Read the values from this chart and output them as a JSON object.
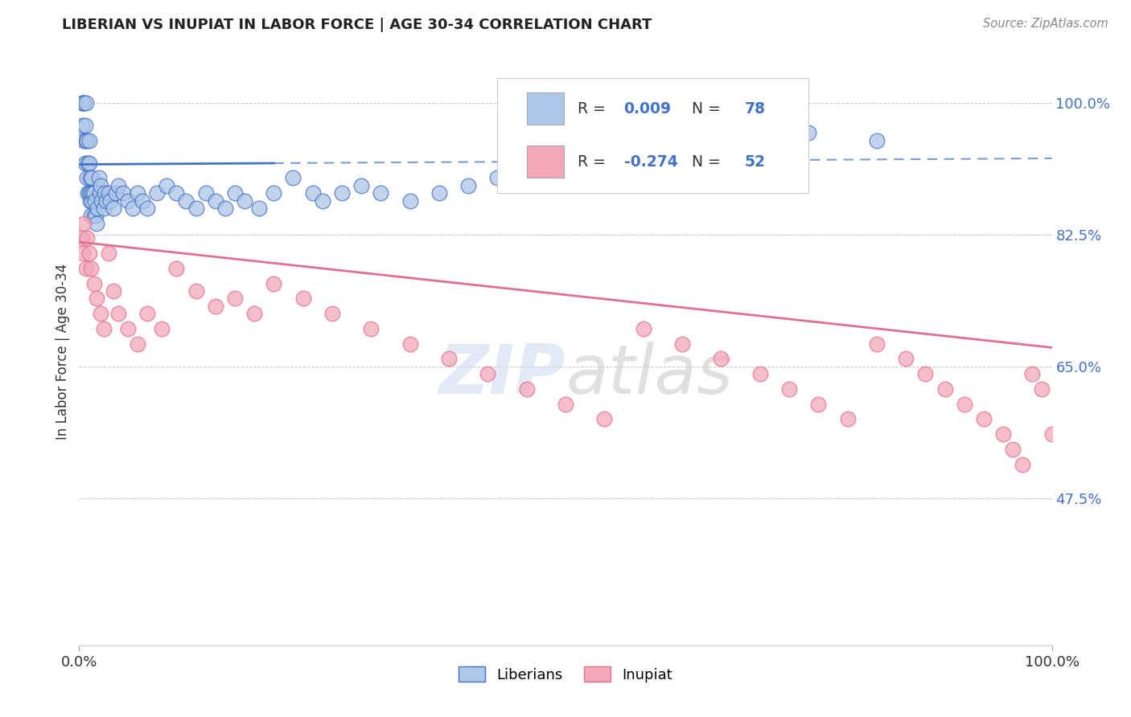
{
  "title": "LIBERIAN VS INUPIAT IN LABOR FORCE | AGE 30-34 CORRELATION CHART",
  "source": "Source: ZipAtlas.com",
  "ylabel": "In Labor Force | Age 30-34",
  "xlim": [
    0.0,
    1.0
  ],
  "ylim": [
    0.28,
    1.06
  ],
  "yticks": [
    0.475,
    0.65,
    0.825,
    1.0
  ],
  "ytick_labels": [
    "47.5%",
    "65.0%",
    "82.5%",
    "100.0%"
  ],
  "xticks": [
    0.0,
    1.0
  ],
  "xtick_labels": [
    "0.0%",
    "100.0%"
  ],
  "liberian_R": 0.009,
  "liberian_N": 78,
  "inupiat_R": -0.274,
  "inupiat_N": 52,
  "liberian_color": "#aec6e8",
  "inupiat_color": "#f4a7b9",
  "liberian_line_color": "#4472c4",
  "inupiat_line_color": "#e07090",
  "liberian_x": [
    0.003,
    0.003,
    0.004,
    0.005,
    0.005,
    0.005,
    0.006,
    0.006,
    0.007,
    0.007,
    0.008,
    0.008,
    0.009,
    0.009,
    0.01,
    0.01,
    0.01,
    0.011,
    0.011,
    0.012,
    0.012,
    0.013,
    0.013,
    0.014,
    0.015,
    0.015,
    0.016,
    0.017,
    0.018,
    0.019,
    0.02,
    0.021,
    0.022,
    0.023,
    0.025,
    0.026,
    0.028,
    0.03,
    0.032,
    0.035,
    0.038,
    0.04,
    0.045,
    0.05,
    0.055,
    0.06,
    0.065,
    0.07,
    0.08,
    0.09,
    0.1,
    0.11,
    0.12,
    0.13,
    0.14,
    0.15,
    0.16,
    0.17,
    0.185,
    0.2,
    0.22,
    0.24,
    0.25,
    0.27,
    0.29,
    0.31,
    0.34,
    0.37,
    0.4,
    0.43,
    0.46,
    0.5,
    0.55,
    0.6,
    0.65,
    0.7,
    0.75,
    0.82
  ],
  "liberian_y": [
    1.0,
    0.97,
    1.0,
    0.95,
    1.0,
    1.0,
    0.92,
    0.97,
    0.95,
    1.0,
    0.9,
    0.95,
    0.88,
    0.92,
    0.88,
    0.92,
    0.95,
    0.87,
    0.9,
    0.85,
    0.88,
    0.87,
    0.9,
    0.88,
    0.85,
    0.88,
    0.87,
    0.85,
    0.84,
    0.86,
    0.9,
    0.88,
    0.89,
    0.87,
    0.86,
    0.88,
    0.87,
    0.88,
    0.87,
    0.86,
    0.88,
    0.89,
    0.88,
    0.87,
    0.86,
    0.88,
    0.87,
    0.86,
    0.88,
    0.89,
    0.88,
    0.87,
    0.86,
    0.88,
    0.87,
    0.86,
    0.88,
    0.87,
    0.86,
    0.88,
    0.9,
    0.88,
    0.87,
    0.88,
    0.89,
    0.88,
    0.87,
    0.88,
    0.89,
    0.9,
    0.91,
    0.92,
    0.93,
    0.94,
    0.95,
    0.95,
    0.96,
    0.95
  ],
  "inupiat_x": [
    0.003,
    0.004,
    0.005,
    0.007,
    0.008,
    0.01,
    0.012,
    0.015,
    0.018,
    0.022,
    0.025,
    0.03,
    0.035,
    0.04,
    0.05,
    0.06,
    0.07,
    0.085,
    0.1,
    0.12,
    0.14,
    0.16,
    0.18,
    0.2,
    0.23,
    0.26,
    0.3,
    0.34,
    0.38,
    0.42,
    0.46,
    0.5,
    0.54,
    0.58,
    0.62,
    0.66,
    0.7,
    0.73,
    0.76,
    0.79,
    0.82,
    0.85,
    0.87,
    0.89,
    0.91,
    0.93,
    0.95,
    0.96,
    0.97,
    0.98,
    0.99,
    1.0
  ],
  "inupiat_y": [
    0.82,
    0.8,
    0.84,
    0.78,
    0.82,
    0.8,
    0.78,
    0.76,
    0.74,
    0.72,
    0.7,
    0.8,
    0.75,
    0.72,
    0.7,
    0.68,
    0.72,
    0.7,
    0.78,
    0.75,
    0.73,
    0.74,
    0.72,
    0.76,
    0.74,
    0.72,
    0.7,
    0.68,
    0.66,
    0.64,
    0.62,
    0.6,
    0.58,
    0.7,
    0.68,
    0.66,
    0.64,
    0.62,
    0.6,
    0.58,
    0.68,
    0.66,
    0.64,
    0.62,
    0.6,
    0.58,
    0.56,
    0.54,
    0.52,
    0.64,
    0.62,
    0.56
  ]
}
